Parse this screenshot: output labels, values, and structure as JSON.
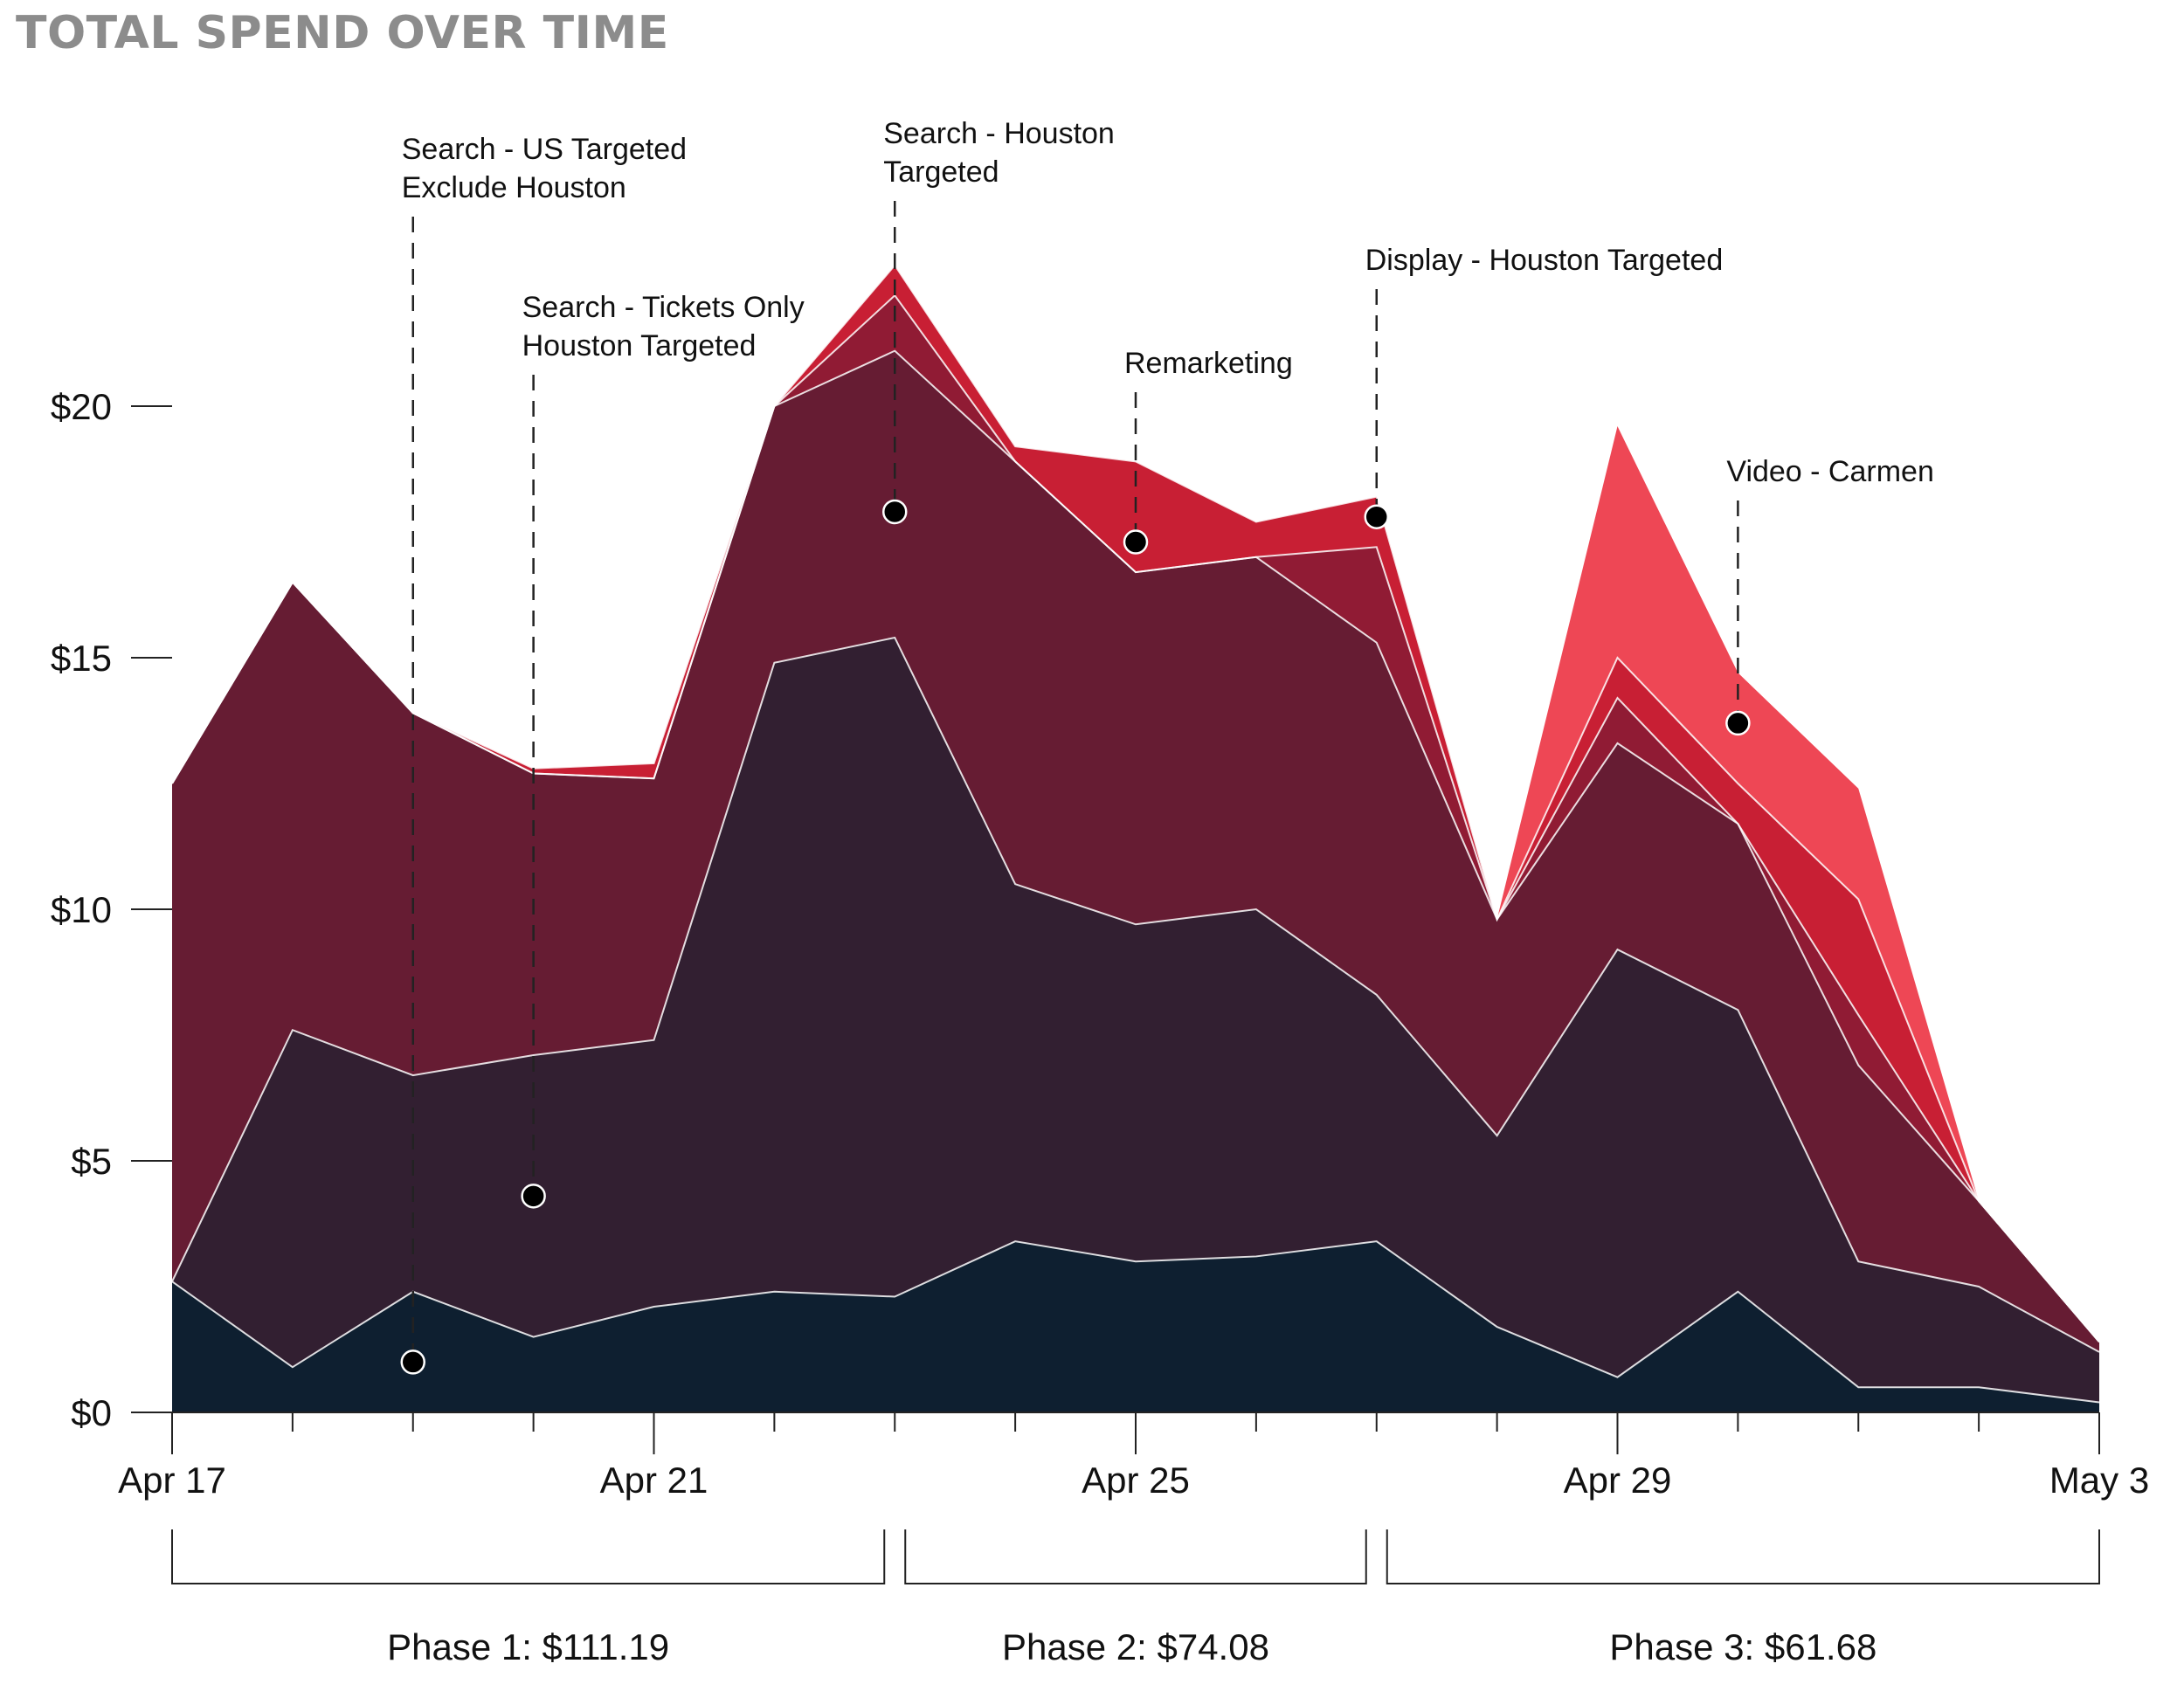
{
  "chart_data": {
    "type": "area",
    "title": "TOTAL SPEND OVER TIME",
    "x": [
      "Apr 17",
      "Apr 18",
      "Apr 19",
      "Apr 20",
      "Apr 21",
      "Apr 22",
      "Apr 23",
      "Apr 24",
      "Apr 25",
      "Apr 26",
      "Apr 27",
      "Apr 28",
      "Apr 29",
      "Apr 30",
      "May 1",
      "May 2",
      "May 3"
    ],
    "x_tick_labels": [
      "Apr 17",
      "Apr 21",
      "Apr 25",
      "Apr 29",
      "May 3"
    ],
    "y_tick_labels": [
      "$0",
      "$5",
      "$10",
      "$15",
      "$20"
    ],
    "ylim": [
      0,
      22.8
    ],
    "stacked": true,
    "series": [
      {
        "color": "#0e1f30",
        "values": [
          2.6,
          0.9,
          2.4,
          1.5,
          2.1,
          2.4,
          2.3,
          3.4,
          3.0,
          3.1,
          3.4,
          1.7,
          0.7,
          2.4,
          0.5,
          0.5,
          0.2
        ]
      },
      {
        "color": "#321f31",
        "values": [
          0,
          6.7,
          4.3,
          5.6,
          5.3,
          12.5,
          13.1,
          7.1,
          6.7,
          6.9,
          4.9,
          3.8,
          8.5,
          5.6,
          2.5,
          2.0,
          1.0
        ]
      },
      {
        "color": "#661c33",
        "values": [
          9.9,
          8.9,
          7.2,
          5.6,
          5.2,
          5.1,
          5.7,
          8.4,
          7.0,
          7.0,
          7.0,
          4.3,
          4.1,
          3.7,
          3.9,
          1.7,
          0.2
        ]
      },
      {
        "color": "#901b34",
        "values": [
          0,
          0,
          0,
          0,
          0,
          0,
          1.1,
          0,
          0,
          0,
          1.9,
          0,
          0.9,
          0,
          1.0,
          0,
          0
        ]
      },
      {
        "color": "#c81f34",
        "values": [
          0,
          0,
          0,
          0.1,
          0.3,
          0,
          0.6,
          0.3,
          2.2,
          0.7,
          1.0,
          0,
          0.8,
          0.8,
          2.3,
          0,
          0
        ]
      },
      {
        "color": "#ee4755",
        "values": [
          0,
          0,
          0,
          0,
          0,
          0,
          0,
          0,
          0,
          0,
          0,
          0,
          4.6,
          2.2,
          2.2,
          0,
          0
        ]
      }
    ],
    "annotations": [
      {
        "lines": [
          "Search - US Targeted",
          "Exclude Houston"
        ],
        "x": "Apr 19",
        "y": 1.0
      },
      {
        "lines": [
          "Search - Tickets Only",
          "Houston Targeted"
        ],
        "x": "Apr 20",
        "y": 4.3
      },
      {
        "lines": [
          "Search - Houston",
          "Targeted"
        ],
        "x": "Apr 23",
        "y": 17.9
      },
      {
        "lines": [
          "Remarketing"
        ],
        "x": "Apr 25",
        "y": 17.3
      },
      {
        "lines": [
          "Display - Houston Targeted"
        ],
        "x": "Apr 27",
        "y": 17.8
      },
      {
        "lines": [
          "Video - Carmen"
        ],
        "x": "Apr 30",
        "y": 13.7
      }
    ],
    "phases": [
      {
        "label": "Phase 1: $111.19",
        "start": "Apr 17",
        "end": "Apr 23"
      },
      {
        "label": "Phase 2: $74.08",
        "start": "Apr 23",
        "end": "Apr 27"
      },
      {
        "label": "Phase 3: $61.68",
        "start": "Apr 27",
        "end": "May 3"
      }
    ]
  }
}
